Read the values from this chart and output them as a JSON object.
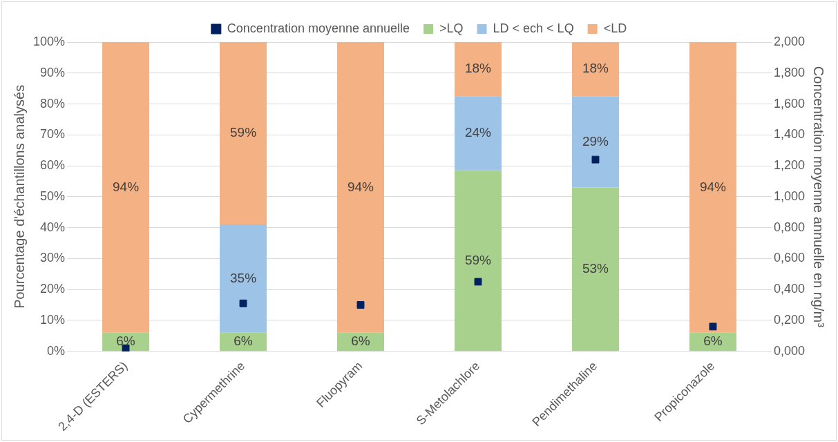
{
  "chart_data": {
    "type": "bar",
    "stacked": true,
    "categories": [
      "2,4-D (ESTERS)",
      "Cypermethrine",
      "Fluopyram",
      "S-Metolachlore",
      "Pendimethaline",
      "Propiconazole"
    ],
    "ylabel": "Pourcentage d'échantillons analysés",
    "y2label": "Concentration moyenne annuelle en ng/m³",
    "series": [
      {
        "name": ">LQ",
        "color": "#a9d18e",
        "values": [
          6,
          6,
          6,
          58.5,
          53,
          6
        ],
        "value_labels": [
          "6%",
          "6%",
          "6%",
          "59%",
          "53%",
          "6%"
        ]
      },
      {
        "name": "LD < ech < LQ",
        "color": "#9dc3e6",
        "values": [
          0,
          35,
          0,
          24,
          29.5,
          0
        ],
        "value_labels": [
          null,
          "35%",
          null,
          "24%",
          "29%",
          null
        ]
      },
      {
        "name": "<LD",
        "color": "#f4b183",
        "values": [
          94,
          59,
          94,
          17.5,
          17.5,
          94
        ],
        "value_labels": [
          "94%",
          "59%",
          "94%",
          "18%",
          "18%",
          "94%"
        ]
      },
      {
        "name": "Concentration moyenne annuelle",
        "type": "scatter",
        "axis": "y2",
        "color": "#002060",
        "x": [
          "2,4-D (ESTERS)",
          "Cypermethrine",
          "Fluopyram",
          "S-Metolachlore",
          "Pendimethaline",
          "Propiconazole"
        ],
        "values": [
          0.02,
          0.31,
          0.3,
          0.45,
          1.24,
          0.16
        ]
      }
    ],
    "ylim": [
      0,
      100
    ],
    "yticks": [
      {
        "value": 0,
        "label": "0%"
      },
      {
        "value": 10,
        "label": "10%"
      },
      {
        "value": 20,
        "label": "20%"
      },
      {
        "value": 30,
        "label": "30%"
      },
      {
        "value": 40,
        "label": "40%"
      },
      {
        "value": 50,
        "label": "50%"
      },
      {
        "value": 60,
        "label": "60%"
      },
      {
        "value": 70,
        "label": "70%"
      },
      {
        "value": 80,
        "label": "80%"
      },
      {
        "value": 90,
        "label": "90%"
      },
      {
        "value": 100,
        "label": "100%"
      }
    ],
    "y2lim": [
      0,
      2
    ],
    "y2ticks": [
      {
        "value": 0,
        "label": "0,000"
      },
      {
        "value": 0.2,
        "label": "0,200"
      },
      {
        "value": 0.4,
        "label": "0,400"
      },
      {
        "value": 0.6,
        "label": "0,600"
      },
      {
        "value": 0.8,
        "label": "0,800"
      },
      {
        "value": 1,
        "label": "1,000"
      },
      {
        "value": 1.2,
        "label": "1,200"
      },
      {
        "value": 1.4,
        "label": "1,400"
      },
      {
        "value": 1.6,
        "label": "1,600"
      },
      {
        "value": 1.8,
        "label": "1,800"
      },
      {
        "value": 2,
        "label": "2,000"
      }
    ],
    "grid": "y",
    "legend": "top",
    "marker": "square"
  }
}
